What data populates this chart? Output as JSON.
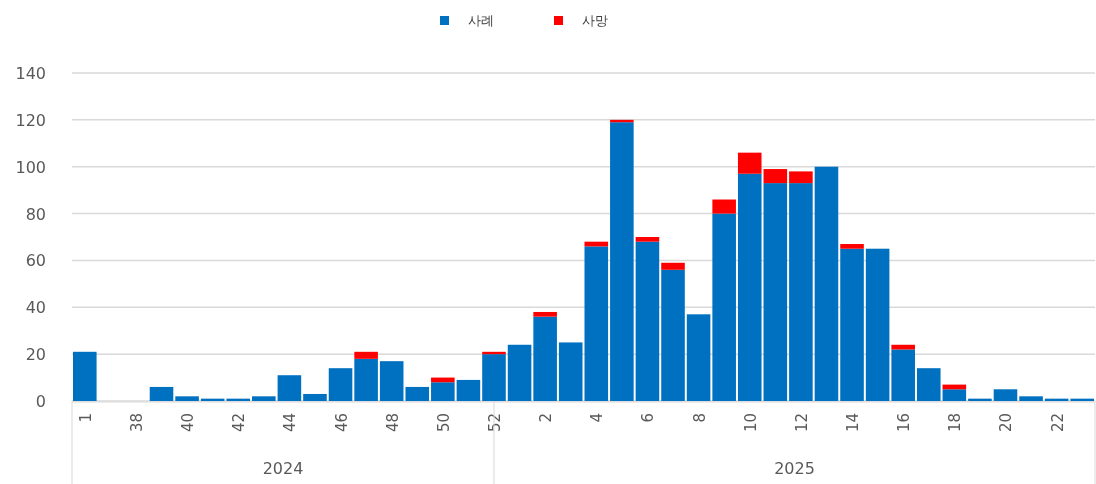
{
  "chart_data": {
    "type": "bar",
    "stacked": true,
    "categories": [
      "1",
      null,
      "38",
      null,
      "40",
      null,
      "42",
      null,
      "44",
      null,
      "46",
      null,
      "48",
      null,
      "50",
      null,
      "52",
      null,
      "2",
      null,
      "4",
      null,
      "6",
      null,
      "8",
      null,
      "10",
      null,
      "12",
      null,
      "14",
      null,
      "16",
      null,
      "18",
      null,
      "20",
      null,
      "22",
      null
    ],
    "series": [
      {
        "name": "사례",
        "color": "#0070c0",
        "values": [
          21,
          0,
          0,
          6,
          2,
          1,
          1,
          2,
          11,
          3,
          14,
          18,
          17,
          6,
          8,
          9,
          20,
          24,
          36,
          25,
          66,
          119,
          68,
          56,
          37,
          80,
          97,
          93,
          93,
          100,
          65,
          65,
          22,
          14,
          5,
          1,
          5,
          2,
          1,
          1
        ]
      },
      {
        "name": "사망",
        "color": "#ff0000",
        "values": [
          0,
          0,
          0,
          0,
          0,
          0,
          0,
          0,
          0,
          0,
          0,
          3,
          0,
          0,
          2,
          0,
          1,
          0,
          2,
          0,
          2,
          1,
          2,
          3,
          0,
          6,
          9,
          6,
          5,
          0,
          2,
          0,
          2,
          0,
          2,
          0,
          0,
          0,
          0,
          0
        ]
      }
    ],
    "ylim": [
      0,
      140
    ],
    "yticks": [
      0,
      20,
      40,
      60,
      80,
      100,
      120,
      140
    ],
    "grid": "y",
    "legend": "top",
    "annotations": [
      "2024",
      "2025"
    ]
  }
}
